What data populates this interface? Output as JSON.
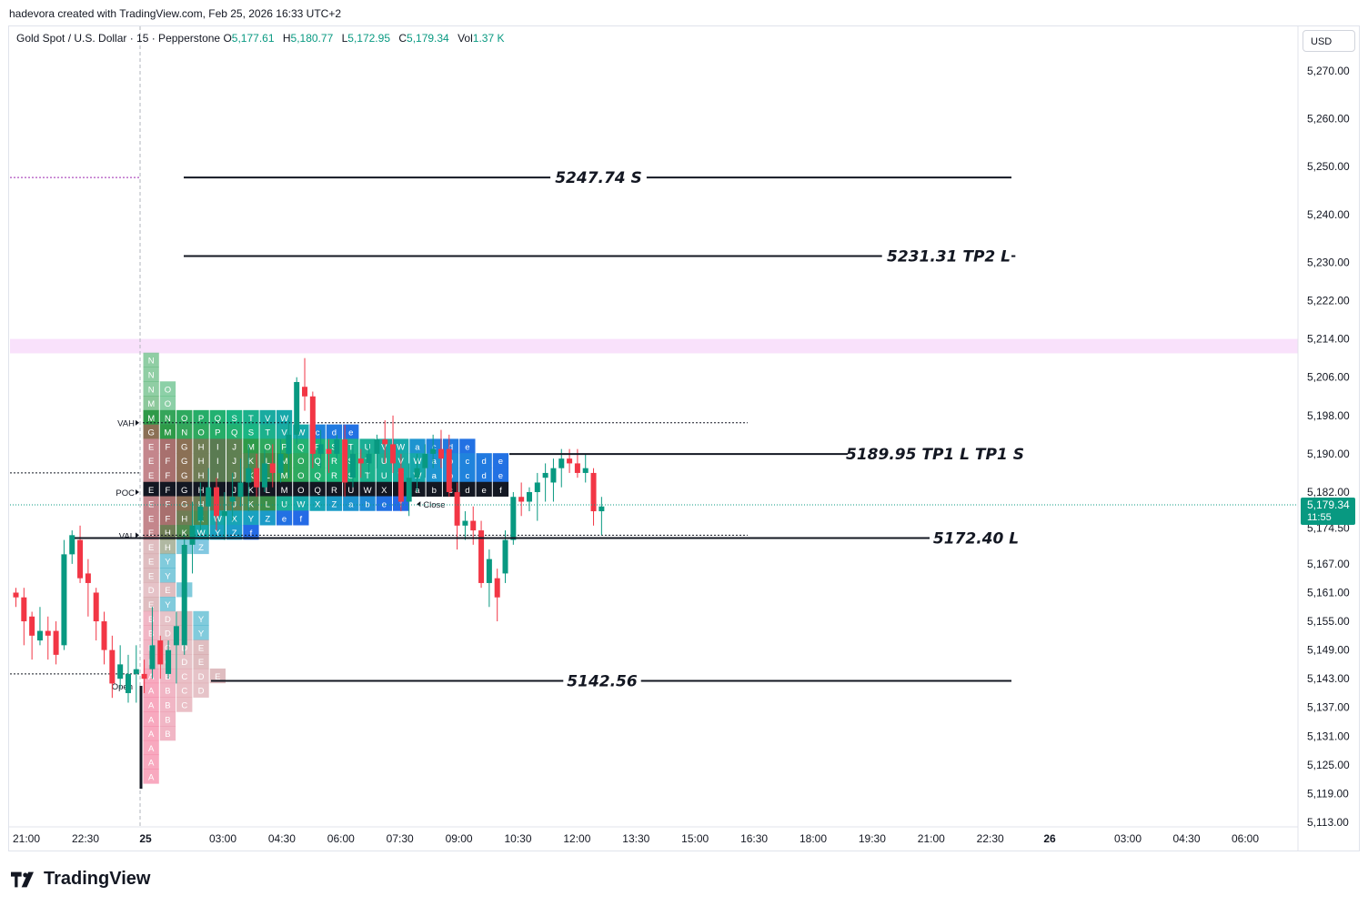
{
  "header": {
    "credit": "hadevora created with TradingView.com, Feb 25, 2026 16:33 UTC+2",
    "symbol": "Gold Spot / U.S. Dollar · 15 · Pepperstone",
    "ohlc": [
      {
        "k": "O",
        "v": "5,177.61"
      },
      {
        "k": "H",
        "v": "5,180.77"
      },
      {
        "k": "L",
        "v": "5,172.95"
      },
      {
        "k": "C",
        "v": "5,179.34"
      },
      {
        "k": "Vol",
        "v": "1.37 K"
      }
    ],
    "currency": "USD"
  },
  "brand": {
    "name": "TradingView"
  },
  "colors": {
    "up": "#089981",
    "down": "#f23645",
    "zone": "#f9e1fb",
    "profile_text": "#ffffff"
  },
  "chart_data": {
    "type": "candlestick",
    "y_axis": {
      "min": 5113,
      "max": 5276,
      "ticks": [
        "5,270.00",
        "5,260.00",
        "5,250.00",
        "5,240.00",
        "5,230.00",
        "5,222.00",
        "5,214.00",
        "5,206.00",
        "5,198.00",
        "5,190.00",
        "5,182.00",
        "5,174.50",
        "5,167.00",
        "5,161.00",
        "5,155.00",
        "5,149.00",
        "5,143.00",
        "5,137.00",
        "5,131.00",
        "5,125.00",
        "5,119.00",
        "5,113.00"
      ]
    },
    "x_axis": {
      "ticks": [
        "21:00",
        "22:30",
        "25",
        "03:00",
        "04:30",
        "06:00",
        "07:30",
        "09:00",
        "10:30",
        "12:00",
        "13:30",
        "15:00",
        "16:30",
        "18:00",
        "19:30",
        "21:00",
        "22:30",
        "26",
        "03:00",
        "04:30",
        "06:00"
      ]
    },
    "price_label": {
      "value": "5,179.34",
      "countdown": "11:55"
    },
    "candles": [
      [
        5161,
        5162,
        5158,
        5160
      ],
      [
        5160,
        5162,
        5150,
        5155
      ],
      [
        5156,
        5157,
        5147,
        5152
      ],
      [
        5151,
        5158,
        5150,
        5153
      ],
      [
        5153,
        5156,
        5147,
        5152
      ],
      [
        5153,
        5155,
        5146,
        5148
      ],
      [
        5150,
        5172,
        5149,
        5169
      ],
      [
        5169,
        5174,
        5167,
        5173
      ],
      [
        5172,
        5175,
        5163,
        5164
      ],
      [
        5165,
        5168,
        5156,
        5163
      ],
      [
        5161,
        5162,
        5151,
        5155
      ],
      [
        5155,
        5157,
        5146,
        5149
      ],
      [
        5149,
        5152,
        5139,
        5142
      ],
      [
        5143,
        5150,
        5141,
        5146
      ],
      [
        5140,
        5148,
        5138,
        5144
      ],
      [
        5144,
        5150,
        5138,
        5145
      ],
      [
        5144,
        5147,
        5140,
        5143
      ],
      [
        5145,
        5158,
        5143,
        5150
      ],
      [
        5151,
        5152,
        5143,
        5146
      ],
      [
        5144,
        5151,
        5143,
        5149
      ],
      [
        5150,
        5157,
        5142,
        5154
      ],
      [
        5150,
        5173,
        5148,
        5171
      ],
      [
        5171,
        5180,
        5165,
        5175
      ],
      [
        5176,
        5184,
        5174,
        5179
      ],
      [
        5179,
        5187,
        5172,
        5183
      ],
      [
        5183,
        5185,
        5174,
        5177
      ],
      [
        5177,
        5182,
        5172,
        5178
      ],
      [
        5180,
        5186,
        5176,
        5181
      ],
      [
        5181,
        5189,
        5179,
        5184
      ],
      [
        5184,
        5192,
        5178,
        5187
      ],
      [
        5187,
        5190,
        5181,
        5183
      ],
      [
        5183,
        5191,
        5182,
        5188
      ],
      [
        5188,
        5192,
        5183,
        5186
      ],
      [
        5186,
        5193,
        5184,
        5190
      ],
      [
        5190,
        5197,
        5185,
        5194
      ],
      [
        5194,
        5206,
        5192,
        5205
      ],
      [
        5204,
        5210,
        5199,
        5202
      ],
      [
        5202,
        5203,
        5187,
        5190
      ],
      [
        5190,
        5195,
        5187,
        5192
      ],
      [
        5191,
        5193,
        5186,
        5190
      ],
      [
        5190,
        5194,
        5189,
        5193
      ],
      [
        5193,
        5196,
        5181,
        5184
      ],
      [
        5185,
        5192,
        5183,
        5190
      ],
      [
        5189,
        5191,
        5185,
        5188
      ],
      [
        5188,
        5192,
        5186,
        5190
      ],
      [
        5190,
        5194,
        5187,
        5193
      ],
      [
        5193,
        5197,
        5188,
        5192
      ],
      [
        5192,
        5198,
        5186,
        5188
      ],
      [
        5187,
        5190,
        5178,
        5180
      ],
      [
        5180,
        5188,
        5177,
        5185
      ],
      [
        5185,
        5190,
        5182,
        5187
      ],
      [
        5187,
        5192,
        5185,
        5190
      ],
      [
        5190,
        5194,
        5187,
        5191
      ],
      [
        5191,
        5195,
        5187,
        5189
      ],
      [
        5191,
        5194,
        5181,
        5182
      ],
      [
        5182,
        5184,
        5170,
        5175
      ],
      [
        5175,
        5178,
        5172,
        5176
      ],
      [
        5176,
        5179,
        5171,
        5174
      ],
      [
        5174,
        5176,
        5162,
        5163
      ],
      [
        5163,
        5170,
        5158,
        5168
      ],
      [
        5164,
        5166,
        5155,
        5160
      ],
      [
        5165,
        5174,
        5163,
        5172
      ],
      [
        5172,
        5182,
        5171,
        5181
      ],
      [
        5181,
        5184,
        5177,
        5180
      ],
      [
        5180,
        5183,
        5178,
        5182
      ],
      [
        5182,
        5186,
        5176,
        5184
      ],
      [
        5185,
        5188,
        5180,
        5186
      ],
      [
        5184,
        5189,
        5180,
        5187
      ],
      [
        5187,
        5191,
        5183,
        5189
      ],
      [
        5189,
        5191,
        5186,
        5188
      ],
      [
        5188,
        5191,
        5185,
        5186
      ],
      [
        5186,
        5190,
        5184,
        5187
      ],
      [
        5186,
        5187,
        5175,
        5178
      ],
      [
        5178,
        5181,
        5173,
        5179
      ]
    ],
    "levels": [
      {
        "value": 5247.74,
        "label": "5247.74 S"
      },
      {
        "value": 5231.31,
        "label": "5231.31 TP2 L"
      },
      {
        "value": 5189.95,
        "label": "5189.95 TP1 L TP1 S"
      },
      {
        "value": 5172.4,
        "label": "5172.40 L"
      },
      {
        "value": 5142.56,
        "label": "5142.56"
      }
    ],
    "zone": {
      "from": 5211,
      "to": 5214
    },
    "profile": {
      "markers": {
        "vah": "VAH",
        "poc": "POC",
        "val": "VAL",
        "open": "Open",
        "close": "Close"
      },
      "vah_price": 5196.5,
      "poc_price": 5182,
      "val_price": 5173,
      "open_price": 5141.5,
      "rows": [
        {
          "price": 5209.5,
          "letters": [
            "N"
          ]
        },
        {
          "price": 5206.5,
          "letters": [
            "N"
          ]
        },
        {
          "price": 5203.5,
          "letters": [
            "N",
            "O"
          ]
        },
        {
          "price": 5200.5,
          "letters": [
            "M",
            "O"
          ]
        },
        {
          "price": 5197.5,
          "letters": [
            "M",
            "N",
            "O",
            "P",
            "Q",
            "S",
            "T",
            "V",
            "W"
          ]
        },
        {
          "price": 5194.5,
          "letters": [
            "G",
            "M",
            "N",
            "O",
            "P",
            "Q",
            "S",
            "T",
            "V",
            "W",
            "c",
            "d",
            "e"
          ]
        },
        {
          "price": 5191.5,
          "letters": [
            "E",
            "F",
            "G",
            "H",
            "I",
            "J",
            "M",
            "O",
            "P",
            "Q",
            "R",
            "S",
            "T",
            "U",
            "V",
            "W",
            "a",
            "c",
            "d",
            "e"
          ]
        },
        {
          "price": 5188.5,
          "letters": [
            "E",
            "F",
            "G",
            "H",
            "I",
            "J",
            "K",
            "L",
            "M",
            "O",
            "Q",
            "R",
            "S",
            "T",
            "U",
            "V",
            "W",
            "a",
            "b",
            "c",
            "d",
            "e"
          ]
        },
        {
          "price": 5185.5,
          "letters": [
            "E",
            "F",
            "G",
            "H",
            "I",
            "J",
            "K",
            "L",
            "M",
            "O",
            "Q",
            "R",
            "S",
            "T",
            "U",
            "V",
            "W",
            "a",
            "b",
            "c",
            "d",
            "e"
          ]
        },
        {
          "price": 5182.5,
          "letters": [
            "E",
            "F",
            "G",
            "H",
            "I",
            "J",
            "K",
            "L",
            "M",
            "O",
            "Q",
            "R",
            "U",
            "W",
            "X",
            "Z",
            "a",
            "b",
            "c",
            "d",
            "e",
            "f"
          ]
        },
        {
          "price": 5179.5,
          "letters": [
            "E",
            "F",
            "G",
            "H",
            "I",
            "J",
            "K",
            "L",
            "U",
            "W",
            "X",
            "Z",
            "a",
            "b",
            "e",
            "f"
          ]
        },
        {
          "price": 5176.5,
          "letters": [
            "E",
            "F",
            "H",
            "K",
            "W",
            "X",
            "Y",
            "Z",
            "e",
            "f"
          ]
        },
        {
          "price": 5173.5,
          "letters": [
            "E",
            "H",
            "K",
            "W",
            "Y",
            "Z",
            "f"
          ]
        },
        {
          "price": 5170.5,
          "letters": [
            "E",
            "H",
            "Y",
            "Z"
          ]
        },
        {
          "price": 5167.5,
          "letters": [
            "E",
            "Y"
          ]
        },
        {
          "price": 5164.5,
          "letters": [
            "E",
            "Y"
          ]
        },
        {
          "price": 5161.5,
          "letters": [
            "D",
            "E",
            "Y"
          ]
        },
        {
          "price": 5158.5,
          "letters": [
            "E",
            "Y"
          ]
        },
        {
          "price": 5155.5,
          "letters": [
            "B",
            "D",
            "E",
            "Y"
          ]
        },
        {
          "price": 5152.5,
          "letters": [
            "B",
            "D",
            "E",
            "Y"
          ]
        },
        {
          "price": 5149.5,
          "letters": [
            "B",
            "C",
            "D",
            "E"
          ]
        },
        {
          "price": 5146.5,
          "letters": [
            "B",
            "C",
            "D",
            "E"
          ]
        },
        {
          "price": 5143.5,
          "letters": [
            "A",
            "B",
            "C",
            "D",
            "E"
          ]
        },
        {
          "price": 5140.5,
          "letters": [
            "A",
            "B",
            "C",
            "D"
          ]
        },
        {
          "price": 5137.5,
          "letters": [
            "A",
            "B",
            "C"
          ]
        },
        {
          "price": 5134.5,
          "letters": [
            "A",
            "B"
          ]
        },
        {
          "price": 5131.5,
          "letters": [
            "A",
            "B"
          ]
        },
        {
          "price": 5128.5,
          "letters": [
            "A"
          ]
        },
        {
          "price": 5125.5,
          "letters": [
            "A"
          ]
        },
        {
          "price": 5122.5,
          "letters": [
            "A"
          ]
        }
      ]
    }
  }
}
